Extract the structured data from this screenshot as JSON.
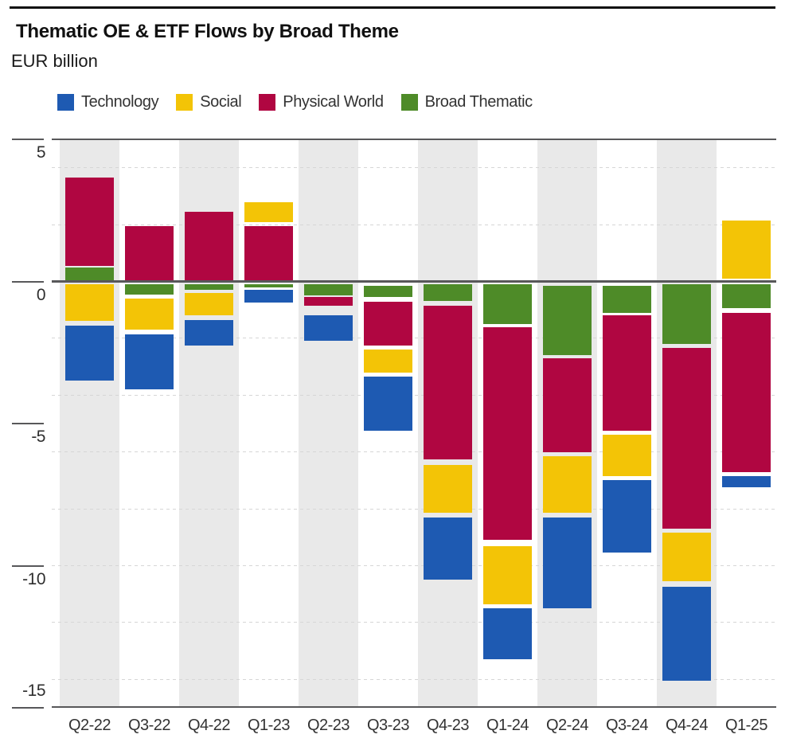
{
  "header": {
    "title": "Thematic OE & ETF Flows by Broad Theme",
    "subtitle": "EUR billion"
  },
  "legend": {
    "items": [
      {
        "label": "Technology",
        "color": "#1e5ab2"
      },
      {
        "label": "Social",
        "color": "#f3c406"
      },
      {
        "label": "Physical World",
        "color": "#b00641"
      },
      {
        "label": "Broad Thematic",
        "color": "#4e8b28"
      }
    ]
  },
  "colors": {
    "Technology": "#1e5ab2",
    "Social": "#f3c406",
    "Physical World": "#b00641",
    "Broad Thematic": "#4e8b28",
    "axis": "#58585a",
    "stripe": "#e9e9e9"
  },
  "chart_data": {
    "type": "bar",
    "stacked": true,
    "title": "Thematic OE & ETF Flows by Broad Theme",
    "ylabel": "EUR billion",
    "ylim": [
      -15,
      5
    ],
    "yticks": [
      5,
      0,
      -5,
      -10,
      -15
    ],
    "dashed_gridlines": [
      4,
      2,
      -2,
      -4,
      -6,
      -8,
      -10,
      -12,
      -14
    ],
    "legend_position": "top",
    "categories": [
      "Q2-22",
      "Q3-22",
      "Q4-22",
      "Q1-23",
      "Q2-23",
      "Q3-23",
      "Q4-23",
      "Q1-24",
      "Q2-24",
      "Q3-24",
      "Q4-24",
      "Q1-25"
    ],
    "series": [
      {
        "name": "Technology",
        "values": [
          -1.95,
          -1.95,
          -0.9,
          -0.45,
          -0.9,
          -1.9,
          -2.2,
          -1.8,
          -3.2,
          -2.55,
          -3.3,
          -0.4
        ]
      },
      {
        "name": "Social",
        "values": [
          -1.3,
          -1.1,
          -0.85,
          0.7,
          0,
          -0.8,
          -1.7,
          -2.05,
          -2.0,
          -1.45,
          -1.7,
          2.05
        ]
      },
      {
        "name": "Physical World",
        "values": [
          3.1,
          1.9,
          2.4,
          1.9,
          -0.35,
          -1.55,
          -5.4,
          -7.5,
          -3.3,
          -4.05,
          -6.35,
          -5.6
        ]
      },
      {
        "name": "Broad Thematic",
        "values": [
          0.45,
          -0.35,
          -0.2,
          -0.1,
          -0.4,
          -0.4,
          -0.6,
          -1.4,
          -2.45,
          -0.95,
          -2.1,
          -0.85
        ]
      }
    ],
    "quarters": [
      {
        "label": "Q2-22",
        "segments": [
          {
            "series": "Physical World",
            "from": 0.55,
            "to": 3.65
          },
          {
            "series": "Broad Thematic",
            "from": 0.05,
            "to": 0.5
          },
          {
            "series": "Social",
            "from": -0.1,
            "to": -1.4
          },
          {
            "series": "Technology",
            "from": -1.55,
            "to": -3.5
          }
        ]
      },
      {
        "label": "Q3-22",
        "segments": [
          {
            "series": "Physical World",
            "from": 0.05,
            "to": 1.95
          },
          {
            "series": "Broad Thematic",
            "from": -0.1,
            "to": -0.45
          },
          {
            "series": "Social",
            "from": -0.6,
            "to": -1.7
          },
          {
            "series": "Technology",
            "from": -1.85,
            "to": -3.8
          }
        ]
      },
      {
        "label": "Q4-22",
        "segments": [
          {
            "series": "Physical World",
            "from": 0.05,
            "to": 2.45
          },
          {
            "series": "Broad Thematic",
            "from": -0.1,
            "to": -0.3
          },
          {
            "series": "Social",
            "from": -0.4,
            "to": -1.2
          },
          {
            "series": "Technology",
            "from": -1.35,
            "to": -2.25
          }
        ]
      },
      {
        "label": "Q1-23",
        "segments": [
          {
            "series": "Social",
            "from": 2.1,
            "to": 2.8
          },
          {
            "series": "Physical World",
            "from": 0.05,
            "to": 1.95
          },
          {
            "series": "Broad Thematic",
            "from": -0.1,
            "to": -0.2
          },
          {
            "series": "Technology",
            "from": -0.3,
            "to": -0.75
          }
        ]
      },
      {
        "label": "Q2-23",
        "segments": [
          {
            "series": "Broad Thematic",
            "from": -0.1,
            "to": -0.5
          },
          {
            "series": "Physical World",
            "from": -0.55,
            "to": -0.85
          },
          {
            "series": "Technology",
            "from": -1.2,
            "to": -2.1
          }
        ]
      },
      {
        "label": "Q3-23",
        "segments": [
          {
            "series": "Broad Thematic",
            "from": -0.15,
            "to": -0.55
          },
          {
            "series": "Physical World",
            "from": -0.7,
            "to": -2.25
          },
          {
            "series": "Social",
            "from": -2.4,
            "to": -3.2
          },
          {
            "series": "Technology",
            "from": -3.35,
            "to": -5.25
          }
        ]
      },
      {
        "label": "Q4-23",
        "segments": [
          {
            "series": "Broad Thematic",
            "from": -0.1,
            "to": -0.7
          },
          {
            "series": "Physical World",
            "from": -0.85,
            "to": -6.25
          },
          {
            "series": "Social",
            "from": -6.45,
            "to": -8.15
          },
          {
            "series": "Technology",
            "from": -8.3,
            "to": -10.5
          }
        ]
      },
      {
        "label": "Q1-24",
        "segments": [
          {
            "series": "Broad Thematic",
            "from": -0.1,
            "to": -1.5
          },
          {
            "series": "Physical World",
            "from": -1.6,
            "to": -9.1
          },
          {
            "series": "Social",
            "from": -9.3,
            "to": -11.35
          },
          {
            "series": "Technology",
            "from": -11.5,
            "to": -13.3
          }
        ]
      },
      {
        "label": "Q2-24",
        "segments": [
          {
            "series": "Broad Thematic",
            "from": -0.15,
            "to": -2.6
          },
          {
            "series": "Physical World",
            "from": -2.7,
            "to": -6.0
          },
          {
            "series": "Social",
            "from": -6.15,
            "to": -8.15
          },
          {
            "series": "Technology",
            "from": -8.3,
            "to": -11.5
          }
        ]
      },
      {
        "label": "Q3-24",
        "segments": [
          {
            "series": "Broad Thematic",
            "from": -0.15,
            "to": -1.1
          },
          {
            "series": "Physical World",
            "from": -1.2,
            "to": -5.25
          },
          {
            "series": "Social",
            "from": -5.4,
            "to": -6.85
          },
          {
            "series": "Technology",
            "from": -7.0,
            "to": -9.55
          }
        ]
      },
      {
        "label": "Q4-24",
        "segments": [
          {
            "series": "Broad Thematic",
            "from": -0.1,
            "to": -2.2
          },
          {
            "series": "Physical World",
            "from": -2.35,
            "to": -8.7
          },
          {
            "series": "Social",
            "from": -8.85,
            "to": -10.55
          },
          {
            "series": "Technology",
            "from": -10.75,
            "to": -14.05
          }
        ]
      },
      {
        "label": "Q1-25",
        "segments": [
          {
            "series": "Social",
            "from": 0.1,
            "to": 2.15
          },
          {
            "series": "Broad Thematic",
            "from": -0.1,
            "to": -0.95
          },
          {
            "series": "Physical World",
            "from": -1.1,
            "to": -6.7
          },
          {
            "series": "Technology",
            "from": -6.85,
            "to": -7.25
          }
        ]
      }
    ]
  }
}
